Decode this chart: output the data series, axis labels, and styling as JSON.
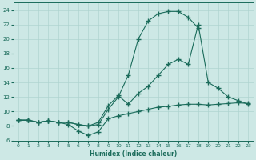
{
  "xlabel": "Humidex (Indice chaleur)",
  "xlim": [
    -0.5,
    23.5
  ],
  "ylim": [
    6,
    25
  ],
  "xticks": [
    0,
    1,
    2,
    3,
    4,
    5,
    6,
    7,
    8,
    9,
    10,
    11,
    12,
    13,
    14,
    15,
    16,
    17,
    18,
    19,
    20,
    21,
    22,
    23
  ],
  "yticks": [
    6,
    8,
    10,
    12,
    14,
    16,
    18,
    20,
    22,
    24
  ],
  "bg_color": "#cde8e5",
  "grid_color": "#afd4d0",
  "line_color": "#1a6b5a",
  "line1_x": [
    0,
    1,
    2,
    3,
    4,
    5,
    6,
    7,
    8,
    9,
    10,
    11,
    12,
    13,
    14,
    15,
    16,
    17,
    18,
    19,
    20,
    21,
    22,
    23
  ],
  "line1_y": [
    8.8,
    8.8,
    8.5,
    8.7,
    8.5,
    8.2,
    7.3,
    6.7,
    7.2,
    9.0,
    9.4,
    9.7,
    10.0,
    10.3,
    10.6,
    10.7,
    10.9,
    11.0,
    11.0,
    10.9,
    11.0,
    11.1,
    11.2,
    11.1
  ],
  "line2_x": [
    0,
    1,
    2,
    3,
    4,
    5,
    6,
    7,
    8,
    9,
    10,
    11,
    12,
    13,
    14,
    15,
    16,
    17,
    18
  ],
  "line2_y": [
    8.8,
    8.8,
    8.5,
    8.7,
    8.5,
    8.5,
    8.2,
    8.0,
    8.2,
    10.3,
    12.0,
    15.0,
    20.0,
    22.5,
    23.5,
    23.8,
    23.8,
    23.0,
    21.5
  ],
  "line3_x": [
    0,
    1,
    2,
    3,
    4,
    5,
    6,
    7,
    8,
    9,
    10,
    11,
    12,
    13,
    14,
    15,
    16,
    17,
    18,
    19,
    20,
    21,
    22,
    23
  ],
  "line3_y": [
    8.8,
    8.8,
    8.5,
    8.7,
    8.5,
    8.5,
    8.2,
    8.0,
    8.5,
    10.8,
    12.2,
    11.0,
    12.5,
    13.5,
    15.0,
    16.5,
    17.2,
    16.5,
    22.0,
    14.0,
    13.2,
    12.0,
    11.5,
    11.0
  ]
}
